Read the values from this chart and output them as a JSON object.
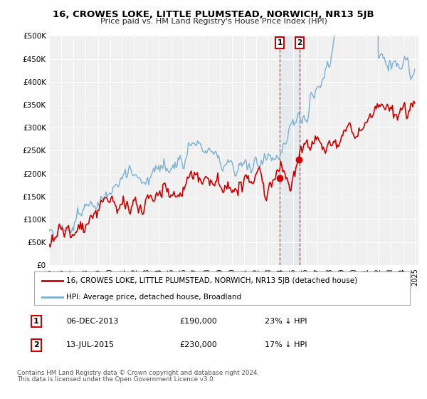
{
  "title": "16, CROWES LOKE, LITTLE PLUMSTEAD, NORWICH, NR13 5JB",
  "subtitle": "Price paid vs. HM Land Registry's House Price Index (HPI)",
  "ylim": [
    0,
    500000
  ],
  "yticks": [
    0,
    50000,
    100000,
    150000,
    200000,
    250000,
    300000,
    350000,
    400000,
    450000,
    500000
  ],
  "ytick_labels": [
    "£0",
    "£50K",
    "£100K",
    "£150K",
    "£200K",
    "£250K",
    "£300K",
    "£350K",
    "£400K",
    "£450K",
    "£500K"
  ],
  "legend_property": "16, CROWES LOKE, LITTLE PLUMSTEAD, NORWICH, NR13 5JB (detached house)",
  "legend_hpi": "HPI: Average price, detached house, Broadland",
  "property_color": "#cc0000",
  "hpi_color": "#7ab0d4",
  "sale1_x": 2013.92,
  "sale1_y": 190000,
  "sale2_x": 2015.54,
  "sale2_y": 230000,
  "footnote1": "Contains HM Land Registry data © Crown copyright and database right 2024.",
  "footnote2": "This data is licensed under the Open Government Licence v3.0.",
  "background_color": "#ffffff",
  "plot_bg_color": "#f0f0f0",
  "grid_color": "#ffffff",
  "sale1_date": "06-DEC-2013",
  "sale1_label": "23% ↓ HPI",
  "sale2_date": "13-JUL-2015",
  "sale2_label": "17% ↓ HPI",
  "xlim_left": 1995,
  "xlim_right": 2025.3
}
